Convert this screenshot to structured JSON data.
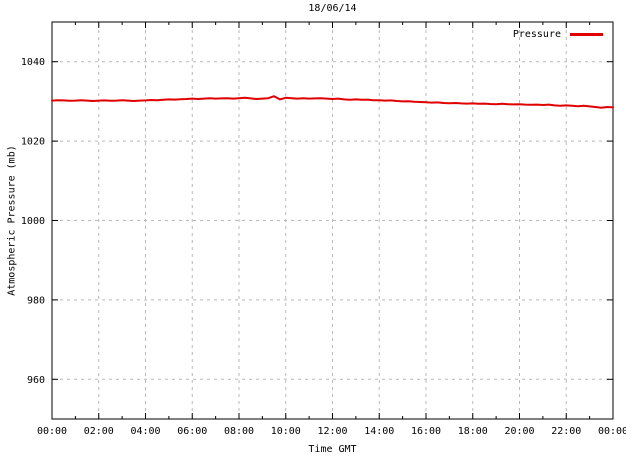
{
  "chart_data": {
    "type": "line",
    "title": "18/06/14",
    "xlabel": "Time GMT",
    "ylabel": "Atmospheric Pressure (mb)",
    "xlim": [
      0,
      24
    ],
    "ylim": [
      950,
      1050
    ],
    "grid": true,
    "x_tick_hours": [
      0,
      2,
      4,
      6,
      8,
      10,
      12,
      14,
      16,
      18,
      20,
      22,
      24
    ],
    "x_tick_labels": [
      "00:00",
      "02:00",
      "04:00",
      "06:00",
      "08:00",
      "10:00",
      "12:00",
      "14:00",
      "16:00",
      "18:00",
      "20:00",
      "22:00",
      "00:00"
    ],
    "x_minor_tick_interval_hours": 1,
    "y_ticks": [
      960,
      980,
      1000,
      1020,
      1040
    ],
    "legend": {
      "position": "top-right-inside",
      "label": "Pressure"
    },
    "colors": {
      "line": "#e00000",
      "grid": "#b8b8b8",
      "axis": "#000000",
      "text": "#000000",
      "background": "#ffffff"
    },
    "series": [
      {
        "name": "Pressure",
        "color": "#e00000",
        "points": [
          [
            0.0,
            1030.2
          ],
          [
            0.25,
            1030.3
          ],
          [
            0.5,
            1030.25
          ],
          [
            0.75,
            1030.15
          ],
          [
            1.0,
            1030.2
          ],
          [
            1.25,
            1030.3
          ],
          [
            1.5,
            1030.2
          ],
          [
            1.75,
            1030.1
          ],
          [
            2.0,
            1030.2
          ],
          [
            2.25,
            1030.25
          ],
          [
            2.5,
            1030.15
          ],
          [
            2.75,
            1030.2
          ],
          [
            3.0,
            1030.3
          ],
          [
            3.25,
            1030.2
          ],
          [
            3.5,
            1030.1
          ],
          [
            3.75,
            1030.2
          ],
          [
            4.0,
            1030.25
          ],
          [
            4.25,
            1030.35
          ],
          [
            4.5,
            1030.3
          ],
          [
            4.75,
            1030.4
          ],
          [
            5.0,
            1030.5
          ],
          [
            5.25,
            1030.45
          ],
          [
            5.5,
            1030.55
          ],
          [
            5.75,
            1030.6
          ],
          [
            6.0,
            1030.7
          ],
          [
            6.25,
            1030.6
          ],
          [
            6.5,
            1030.7
          ],
          [
            6.75,
            1030.8
          ],
          [
            7.0,
            1030.7
          ],
          [
            7.25,
            1030.75
          ],
          [
            7.5,
            1030.8
          ],
          [
            7.75,
            1030.7
          ],
          [
            8.0,
            1030.8
          ],
          [
            8.25,
            1030.9
          ],
          [
            8.5,
            1030.75
          ],
          [
            8.75,
            1030.6
          ],
          [
            9.0,
            1030.7
          ],
          [
            9.25,
            1030.8
          ],
          [
            9.5,
            1031.3
          ],
          [
            9.75,
            1030.5
          ],
          [
            10.0,
            1030.9
          ],
          [
            10.25,
            1030.8
          ],
          [
            10.5,
            1030.7
          ],
          [
            10.75,
            1030.8
          ],
          [
            11.0,
            1030.7
          ],
          [
            11.25,
            1030.75
          ],
          [
            11.5,
            1030.8
          ],
          [
            11.75,
            1030.7
          ],
          [
            12.0,
            1030.6
          ],
          [
            12.25,
            1030.7
          ],
          [
            12.5,
            1030.5
          ],
          [
            12.75,
            1030.4
          ],
          [
            13.0,
            1030.5
          ],
          [
            13.25,
            1030.4
          ],
          [
            13.5,
            1030.45
          ],
          [
            13.75,
            1030.3
          ],
          [
            14.0,
            1030.3
          ],
          [
            14.25,
            1030.2
          ],
          [
            14.5,
            1030.25
          ],
          [
            14.75,
            1030.1
          ],
          [
            15.0,
            1030.0
          ],
          [
            15.25,
            1030.05
          ],
          [
            15.5,
            1029.9
          ],
          [
            15.75,
            1029.85
          ],
          [
            16.0,
            1029.8
          ],
          [
            16.25,
            1029.7
          ],
          [
            16.5,
            1029.75
          ],
          [
            16.75,
            1029.6
          ],
          [
            17.0,
            1029.55
          ],
          [
            17.25,
            1029.6
          ],
          [
            17.5,
            1029.5
          ],
          [
            17.75,
            1029.45
          ],
          [
            18.0,
            1029.5
          ],
          [
            18.25,
            1029.4
          ],
          [
            18.5,
            1029.45
          ],
          [
            18.75,
            1029.35
          ],
          [
            19.0,
            1029.3
          ],
          [
            19.25,
            1029.4
          ],
          [
            19.5,
            1029.3
          ],
          [
            19.75,
            1029.25
          ],
          [
            20.0,
            1029.3
          ],
          [
            20.25,
            1029.2
          ],
          [
            20.5,
            1029.15
          ],
          [
            20.75,
            1029.2
          ],
          [
            21.0,
            1029.1
          ],
          [
            21.25,
            1029.2
          ],
          [
            21.5,
            1029.0
          ],
          [
            21.75,
            1028.9
          ],
          [
            22.0,
            1029.0
          ],
          [
            22.25,
            1028.9
          ],
          [
            22.5,
            1028.8
          ],
          [
            22.75,
            1028.9
          ],
          [
            23.0,
            1028.75
          ],
          [
            23.25,
            1028.6
          ],
          [
            23.5,
            1028.4
          ],
          [
            23.75,
            1028.6
          ],
          [
            24.0,
            1028.5
          ]
        ]
      }
    ]
  }
}
